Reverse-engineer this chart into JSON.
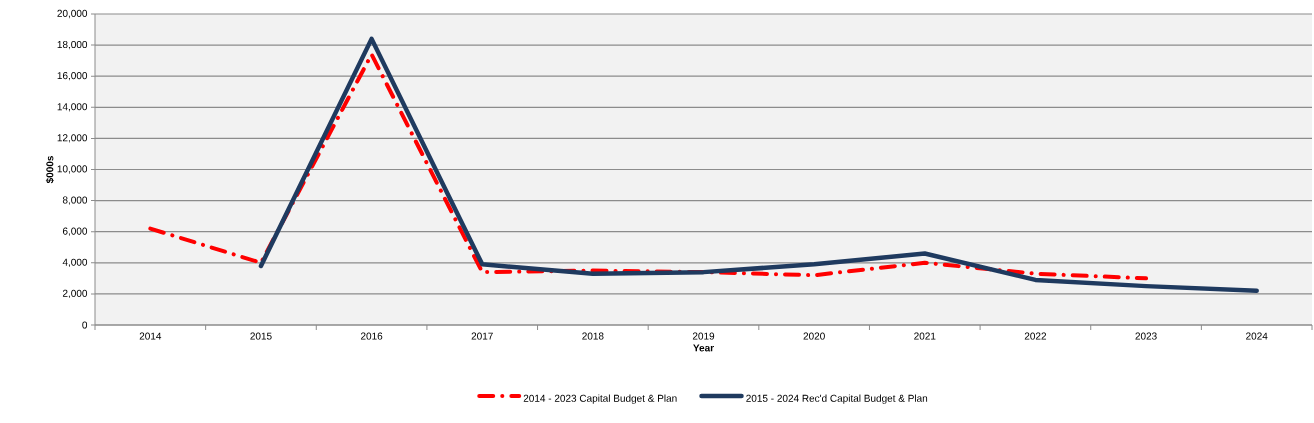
{
  "chart_data": {
    "type": "line",
    "xlabel": "Year",
    "ylabel": "$000s",
    "categories": [
      "2014",
      "2015",
      "2016",
      "2017",
      "2018",
      "2019",
      "2020",
      "2021",
      "2022",
      "2023",
      "2024"
    ],
    "series": [
      {
        "name": "2014 - 2023 Capital Budget & Plan",
        "color": "#ff0000",
        "line_style": "dashdot",
        "values": [
          6200,
          4000,
          17400,
          3400,
          3500,
          3400,
          3200,
          4000,
          3300,
          3000,
          null
        ]
      },
      {
        "name": "2015 - 2024 Rec'd Capital Budget & Plan",
        "color": "#1f3a5f",
        "line_style": "solid",
        "values": [
          null,
          3800,
          18400,
          3900,
          3300,
          3400,
          3900,
          4600,
          2900,
          2500,
          2200
        ]
      }
    ],
    "ylim": [
      0,
      20000
    ],
    "yticks": [
      {
        "value": 0,
        "label": "0"
      },
      {
        "value": 2000,
        "label": "2,000"
      },
      {
        "value": 4000,
        "label": "4,000"
      },
      {
        "value": 6000,
        "label": "6,000"
      },
      {
        "value": 8000,
        "label": "8,000"
      },
      {
        "value": 10000,
        "label": "10,000"
      },
      {
        "value": 12000,
        "label": "12,000"
      },
      {
        "value": 14000,
        "label": "14,000"
      },
      {
        "value": 16000,
        "label": "16,000"
      },
      {
        "value": 18000,
        "label": "18,000"
      },
      {
        "value": 20000,
        "label": "20,000"
      }
    ],
    "grid": "y",
    "legend": "bottom",
    "marker": "none"
  }
}
